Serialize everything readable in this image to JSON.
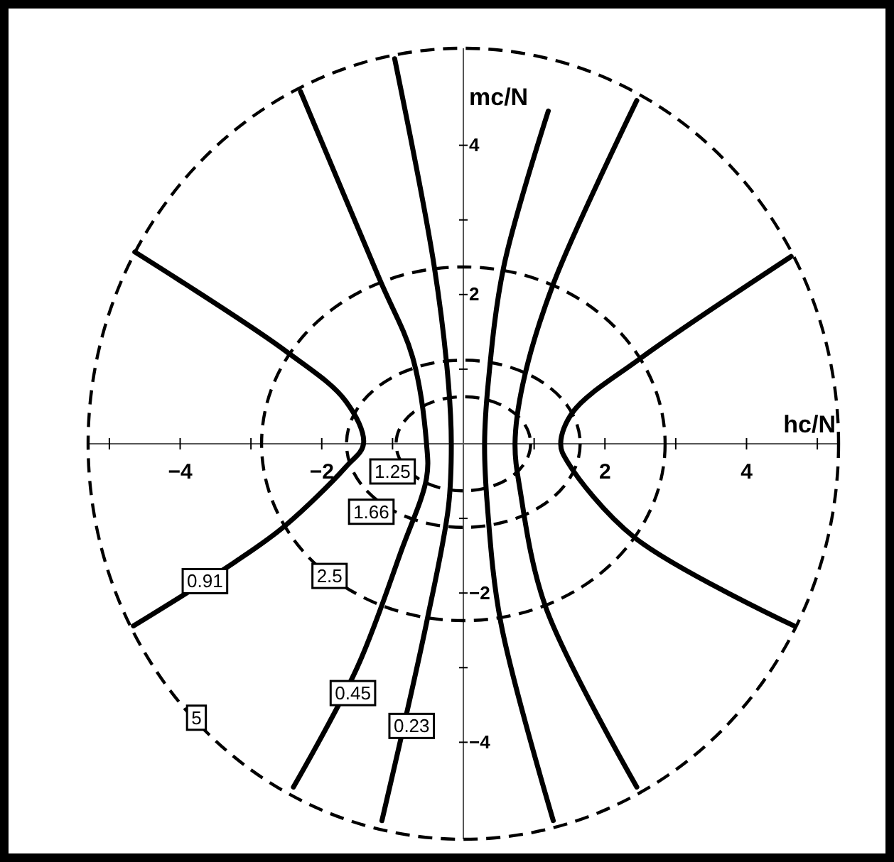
{
  "chart_data": {
    "type": "line",
    "xlabel": "hc/N",
    "ylabel": "mc/N",
    "xlim": [
      -5.3,
      5.3
    ],
    "ylim": [
      -5.3,
      5.3
    ],
    "xticks": [
      {
        "value": -5,
        "label": null
      },
      -4,
      {
        "value": -3,
        "label": null
      },
      -2,
      {
        "value": -1,
        "label": null
      },
      {
        "value": 1,
        "label": null
      },
      2,
      {
        "value": 3,
        "label": null
      },
      4,
      {
        "value": 5,
        "label": null
      }
    ],
    "yticks": [
      -4,
      {
        "value": -3,
        "label": null
      },
      -2,
      {
        "value": -1,
        "label": null
      },
      {
        "value": 1,
        "label": null
      },
      2,
      {
        "value": 3,
        "label": null
      },
      4
    ],
    "series": [
      {
        "color": "#000000",
        "line_style": "solid",
        "x": [
          -4.66,
          -3.22,
          -2.52,
          -1.66,
          -1.41,
          -1.66,
          -2.52,
          -4.64
        ],
        "values": [
          -2.44,
          -1.58,
          -1.1,
          -0.31,
          0,
          0.57,
          1.25,
          2.57
        ]
      },
      {
        "color": "#000000",
        "line_style": "solid",
        "x": [
          4.67,
          2.41,
          1.47,
          1.375,
          1.55,
          2.48,
          4.63
        ],
        "values": [
          -2.44,
          -1.25,
          -0.24,
          0,
          0.43,
          1.13,
          2.51
        ]
      },
      {
        "color": "#000000",
        "line_style": "solid",
        "x": [
          -2.4,
          -1.5,
          -0.875,
          -0.52,
          -0.52,
          -0.72,
          -1.19,
          -2.3
        ],
        "values": [
          -4.6,
          -3.0,
          -1.43,
          -0.46,
          0,
          1.17,
          2.22,
          4.72
        ]
      },
      {
        "color": "#000000",
        "line_style": "solid",
        "x": [
          -1.15,
          -0.52,
          -0.21,
          -0.17,
          -0.21,
          -0.41,
          -0.97
        ],
        "values": [
          -5.05,
          -2.4,
          -0.84,
          0,
          0.8,
          2.37,
          5.16
        ]
      },
      {
        "color": "#000000",
        "line_style": "solid",
        "x": [
          1.27,
          0.53,
          0.34,
          0.3,
          0.35,
          0.57,
          1.2
        ],
        "values": [
          -5.05,
          -2.4,
          -0.84,
          0,
          0.8,
          2.37,
          4.46
        ]
      },
      {
        "color": "#000000",
        "line_style": "solid",
        "x": [
          2.45,
          1.16,
          0.8,
          0.73,
          0.84,
          1.27,
          2.45
        ],
        "values": [
          -4.6,
          -2.18,
          -0.61,
          0,
          0.8,
          2.14,
          4.6
        ]
      }
    ],
    "annotations": [
      {
        "text": "1.25",
        "x": -1.0,
        "y": -0.37
      },
      {
        "text": "1.66",
        "x": -1.3,
        "y": -0.91
      },
      {
        "text": "2.5",
        "x": -1.89,
        "y": -1.77
      },
      {
        "text": "5",
        "x": -3.77,
        "y": -3.67
      },
      {
        "text": "0.91",
        "x": -3.65,
        "y": -1.84
      },
      {
        "text": "0.45",
        "x": -1.56,
        "y": -3.34
      },
      {
        "text": "0.23",
        "x": -0.73,
        "y": -3.78
      }
    ]
  }
}
